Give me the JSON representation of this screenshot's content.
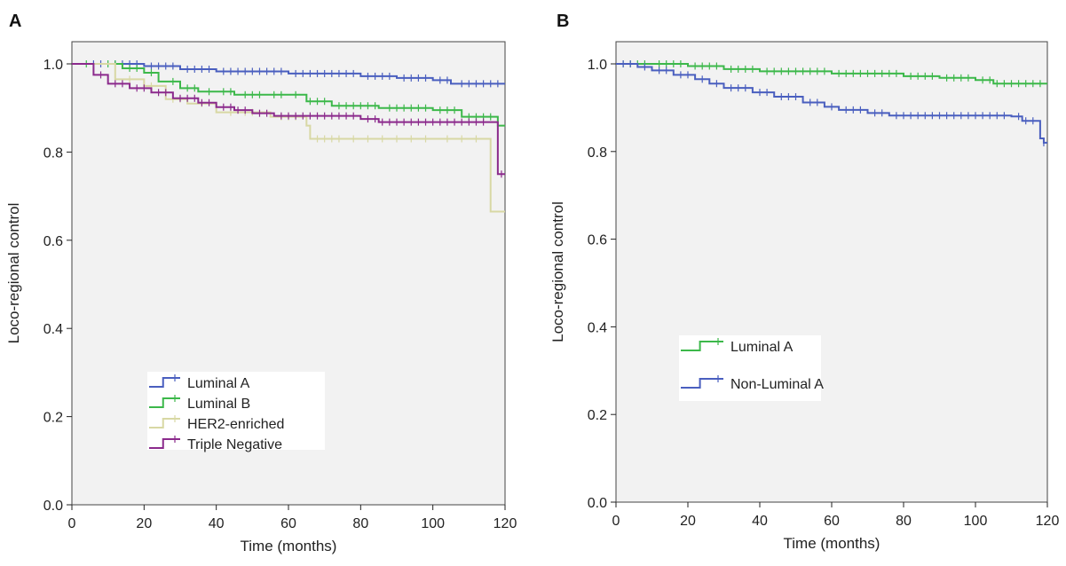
{
  "chart_data": [
    {
      "panel_label": "A",
      "type": "line",
      "step": true,
      "xlabel": "Time (months)",
      "ylabel": "Loco-regional control",
      "xlim": [
        0,
        120
      ],
      "ylim": [
        0,
        1.05
      ],
      "xticks": [
        0,
        20,
        40,
        60,
        80,
        100,
        120
      ],
      "yticks": [
        0.0,
        0.2,
        0.4,
        0.6,
        0.8,
        1.0
      ],
      "ytick_labels": [
        "0.0",
        "0.2",
        "0.4",
        "0.6",
        "0.8",
        "1.0"
      ],
      "xtick_labels": [
        "0",
        "20",
        "40",
        "60",
        "80",
        "100",
        "120"
      ],
      "background": "#f2f2f2",
      "legend": {
        "position": "lower-left",
        "entries": [
          "Luminal A",
          "Luminal B",
          "HER2-enriched",
          "Triple Negative"
        ]
      },
      "series": [
        {
          "name": "Luminal A",
          "color": "#4a5fbf",
          "points": [
            [
              0,
              1.0
            ],
            [
              10,
              1.0
            ],
            [
              20,
              0.995
            ],
            [
              30,
              0.988
            ],
            [
              40,
              0.983
            ],
            [
              60,
              0.978
            ],
            [
              80,
              0.972
            ],
            [
              90,
              0.968
            ],
            [
              100,
              0.963
            ],
            [
              105,
              0.955
            ],
            [
              120,
              0.955
            ]
          ],
          "censor_x": [
            6,
            8,
            12,
            14,
            16,
            18,
            22,
            24,
            26,
            28,
            32,
            34,
            36,
            38,
            42,
            44,
            46,
            48,
            50,
            52,
            54,
            56,
            58,
            62,
            64,
            66,
            68,
            70,
            72,
            74,
            76,
            78,
            82,
            84,
            86,
            88,
            92,
            94,
            96,
            98,
            102,
            104,
            108,
            110,
            112,
            114,
            116,
            118
          ]
        },
        {
          "name": "Luminal B",
          "color": "#3cb84a",
          "points": [
            [
              0,
              1.0
            ],
            [
              8,
              1.0
            ],
            [
              14,
              0.99
            ],
            [
              20,
              0.98
            ],
            [
              24,
              0.96
            ],
            [
              30,
              0.945
            ],
            [
              35,
              0.937
            ],
            [
              45,
              0.93
            ],
            [
              60,
              0.93
            ],
            [
              65,
              0.915
            ],
            [
              72,
              0.905
            ],
            [
              85,
              0.9
            ],
            [
              100,
              0.895
            ],
            [
              108,
              0.88
            ],
            [
              118,
              0.86
            ],
            [
              120,
              0.86
            ]
          ],
          "censor_x": [
            4,
            10,
            12,
            16,
            18,
            22,
            28,
            32,
            34,
            38,
            42,
            44,
            48,
            50,
            52,
            56,
            58,
            62,
            66,
            68,
            70,
            74,
            76,
            78,
            80,
            82,
            84,
            88,
            90,
            92,
            94,
            96,
            98,
            102,
            104,
            106,
            110,
            112,
            114,
            116
          ]
        },
        {
          "name": "HER2-enriched",
          "color": "#d8d8a4",
          "points": [
            [
              0,
              1.0
            ],
            [
              12,
              0.965
            ],
            [
              20,
              0.95
            ],
            [
              26,
              0.92
            ],
            [
              32,
              0.91
            ],
            [
              40,
              0.89
            ],
            [
              55,
              0.88
            ],
            [
              65,
              0.86
            ],
            [
              66,
              0.83
            ],
            [
              100,
              0.83
            ],
            [
              116,
              0.83
            ],
            [
              116,
              0.665
            ],
            [
              120,
              0.665
            ]
          ],
          "censor_x": [
            16,
            22,
            28,
            30,
            36,
            44,
            48,
            50,
            58,
            60,
            62,
            68,
            70,
            72,
            74,
            78,
            82,
            86,
            90,
            94,
            98,
            104,
            108,
            112
          ]
        },
        {
          "name": "Triple Negative",
          "color": "#8b2a8c",
          "points": [
            [
              0,
              1.0
            ],
            [
              4,
              1.0
            ],
            [
              6,
              0.975
            ],
            [
              10,
              0.955
            ],
            [
              16,
              0.945
            ],
            [
              22,
              0.935
            ],
            [
              28,
              0.922
            ],
            [
              35,
              0.912
            ],
            [
              40,
              0.902
            ],
            [
              45,
              0.895
            ],
            [
              50,
              0.888
            ],
            [
              56,
              0.882
            ],
            [
              80,
              0.875
            ],
            [
              85,
              0.868
            ],
            [
              116,
              0.868
            ],
            [
              118,
              0.75
            ],
            [
              120,
              0.75
            ]
          ],
          "censor_x": [
            8,
            12,
            14,
            18,
            20,
            24,
            26,
            30,
            32,
            34,
            36,
            38,
            42,
            44,
            46,
            48,
            52,
            54,
            58,
            60,
            62,
            64,
            66,
            68,
            70,
            72,
            74,
            76,
            78,
            82,
            84,
            86,
            88,
            90,
            92,
            94,
            96,
            98,
            100,
            102,
            104,
            106,
            108,
            110,
            112,
            114,
            119
          ]
        }
      ]
    },
    {
      "panel_label": "B",
      "type": "line",
      "step": true,
      "xlabel": "Time (months)",
      "ylabel": "Loco-regional control",
      "xlim": [
        0,
        120
      ],
      "ylim": [
        0,
        1.05
      ],
      "xticks": [
        0,
        20,
        40,
        60,
        80,
        100,
        120
      ],
      "yticks": [
        0.0,
        0.2,
        0.4,
        0.6,
        0.8,
        1.0
      ],
      "ytick_labels": [
        "0.0",
        "0.2",
        "0.4",
        "0.6",
        "0.8",
        "1.0"
      ],
      "xtick_labels": [
        "0",
        "20",
        "40",
        "60",
        "80",
        "100",
        "120"
      ],
      "background": "#f2f2f2",
      "legend": {
        "position": "lower-left",
        "entries": [
          "Luminal A",
          "Non-Luminal A"
        ]
      },
      "series": [
        {
          "name": "Luminal A",
          "color": "#3cb84a",
          "points": [
            [
              0,
              1.0
            ],
            [
              10,
              1.0
            ],
            [
              20,
              0.995
            ],
            [
              30,
              0.988
            ],
            [
              40,
              0.983
            ],
            [
              60,
              0.978
            ],
            [
              80,
              0.972
            ],
            [
              90,
              0.968
            ],
            [
              100,
              0.963
            ],
            [
              105,
              0.955
            ],
            [
              120,
              0.955
            ]
          ],
          "censor_x": [
            2,
            4,
            6,
            8,
            12,
            14,
            16,
            18,
            22,
            24,
            26,
            28,
            32,
            34,
            36,
            38,
            42,
            44,
            46,
            48,
            50,
            52,
            54,
            56,
            58,
            62,
            64,
            66,
            68,
            70,
            72,
            74,
            76,
            78,
            82,
            84,
            86,
            88,
            92,
            94,
            96,
            98,
            102,
            104,
            106,
            108,
            110,
            112,
            114,
            116,
            118
          ]
        },
        {
          "name": "Non-Luminal A",
          "color": "#4a5fbf",
          "points": [
            [
              0,
              1.0
            ],
            [
              6,
              0.993
            ],
            [
              10,
              0.985
            ],
            [
              16,
              0.975
            ],
            [
              22,
              0.965
            ],
            [
              26,
              0.955
            ],
            [
              30,
              0.945
            ],
            [
              38,
              0.935
            ],
            [
              44,
              0.925
            ],
            [
              52,
              0.912
            ],
            [
              58,
              0.902
            ],
            [
              62,
              0.895
            ],
            [
              70,
              0.888
            ],
            [
              76,
              0.882
            ],
            [
              110,
              0.88
            ],
            [
              113,
              0.87
            ],
            [
              117,
              0.87
            ],
            [
              118,
              0.83
            ],
            [
              119,
              0.82
            ],
            [
              120,
              0.82
            ]
          ],
          "censor_x": [
            2,
            4,
            8,
            12,
            14,
            18,
            20,
            24,
            28,
            32,
            34,
            36,
            40,
            42,
            46,
            48,
            50,
            54,
            56,
            60,
            64,
            66,
            68,
            72,
            74,
            78,
            80,
            82,
            84,
            86,
            88,
            90,
            92,
            94,
            96,
            98,
            100,
            102,
            104,
            106,
            108,
            112,
            114,
            116,
            119
          ]
        }
      ]
    }
  ]
}
